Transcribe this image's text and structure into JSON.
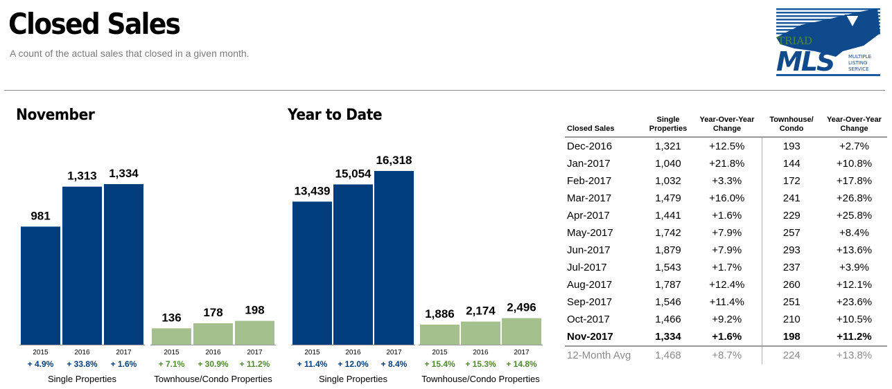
{
  "header": {
    "title": "Closed Sales",
    "subtitle": "A count of the actual sales that closed in a given month."
  },
  "logo": {
    "word_triad": "TRIAD",
    "word_mls": "MLS",
    "line1": "MULTIPLE",
    "line2": "LISTING",
    "line3": "SERVICE"
  },
  "colors": {
    "single": "#003d7c",
    "townhouse": "#a4c18d",
    "single_text": "#003d7c",
    "townhouse_text": "#4e8a2c"
  },
  "chart_data": [
    {
      "type": "bar",
      "title": "November",
      "groups": [
        {
          "name": "Single Properties",
          "color": "#003d7c",
          "categories": [
            "2015",
            "2016",
            "2017"
          ],
          "values": [
            981,
            1313,
            1334
          ],
          "value_labels": [
            "981",
            "1,313",
            "1,334"
          ],
          "changes": [
            "+ 4.9%",
            "+ 33.8%",
            "+ 1.6%"
          ]
        },
        {
          "name": "Townhouse/Condo Properties",
          "color": "#a4c18d",
          "categories": [
            "2015",
            "2016",
            "2017"
          ],
          "values": [
            136,
            178,
            198
          ],
          "value_labels": [
            "136",
            "178",
            "198"
          ],
          "changes": [
            "+ 7.1%",
            "+ 30.9%",
            "+ 11.2%"
          ]
        }
      ]
    },
    {
      "type": "bar",
      "title": "Year to Date",
      "groups": [
        {
          "name": "Single Properties",
          "color": "#003d7c",
          "categories": [
            "2015",
            "2016",
            "2017"
          ],
          "values": [
            13439,
            15054,
            16318
          ],
          "value_labels": [
            "13,439",
            "15,054",
            "16,318"
          ],
          "changes": [
            "+ 11.4%",
            "+ 12.0%",
            "+ 8.4%"
          ]
        },
        {
          "name": "Townhouse/Condo Properties",
          "color": "#a4c18d",
          "categories": [
            "2015",
            "2016",
            "2017"
          ],
          "values": [
            1886,
            2174,
            2496
          ],
          "value_labels": [
            "1,886",
            "2,174",
            "2,496"
          ],
          "changes": [
            "+ 15.4%",
            "+ 15.3%",
            "+ 14.8%"
          ]
        }
      ]
    },
    {
      "type": "table",
      "headers": [
        "Closed Sales",
        "Single Properties",
        "Year-Over-Year Change",
        "Townhouse/ Condo",
        "Year-Over-Year Change"
      ],
      "rows": [
        [
          "Dec-2016",
          "1,321",
          "+12.5%",
          "193",
          "+2.7%"
        ],
        [
          "Jan-2017",
          "1,040",
          "+21.8%",
          "144",
          "+10.8%"
        ],
        [
          "Feb-2017",
          "1,032",
          "+3.3%",
          "172",
          "+17.8%"
        ],
        [
          "Mar-2017",
          "1,479",
          "+16.0%",
          "241",
          "+26.8%"
        ],
        [
          "Apr-2017",
          "1,441",
          "+1.6%",
          "229",
          "+25.8%"
        ],
        [
          "May-2017",
          "1,742",
          "+7.9%",
          "257",
          "+8.4%"
        ],
        [
          "Jun-2017",
          "1,879",
          "+7.9%",
          "293",
          "+13.6%"
        ],
        [
          "Jul-2017",
          "1,543",
          "+1.7%",
          "237",
          "+3.9%"
        ],
        [
          "Aug-2017",
          "1,787",
          "+12.4%",
          "260",
          "+12.1%"
        ],
        [
          "Sep-2017",
          "1,546",
          "+11.4%",
          "251",
          "+23.6%"
        ],
        [
          "Oct-2017",
          "1,466",
          "+9.2%",
          "210",
          "+10.5%"
        ],
        [
          "Nov-2017",
          "1,334",
          "+1.6%",
          "198",
          "+11.2%"
        ]
      ],
      "summary": [
        "12-Month Avg",
        "1,468",
        "+8.7%",
        "224",
        "+13.8%"
      ]
    }
  ]
}
